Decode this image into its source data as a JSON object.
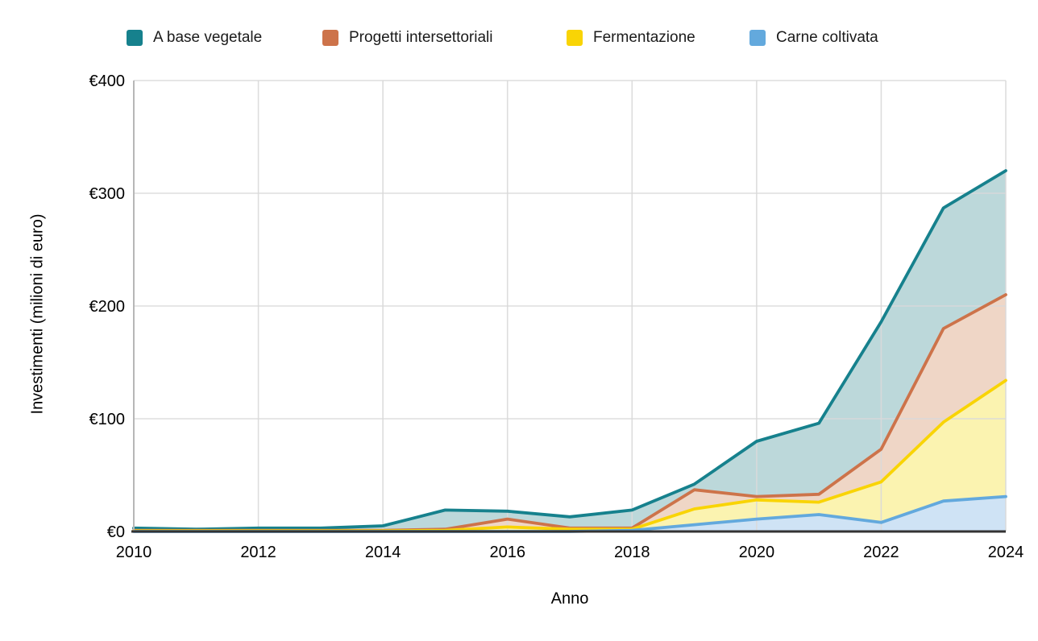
{
  "chart_data": {
    "type": "area",
    "title": "",
    "xlabel": "Anno",
    "ylabel": "Investimenti (milioni di euro)",
    "x": [
      2010,
      2011,
      2012,
      2013,
      2014,
      2015,
      2016,
      2017,
      2018,
      2019,
      2020,
      2021,
      2022,
      2023,
      2024
    ],
    "series": [
      {
        "name": "A base vegetale",
        "color": "#16818d",
        "fill": "#bcd8da",
        "values": [
          3,
          2,
          3,
          3,
          5,
          19,
          18,
          13,
          19,
          42,
          80,
          96,
          186,
          287,
          320
        ]
      },
      {
        "name": "Progetti intersettoriali",
        "color": "#cd734a",
        "fill": "#efd6c6",
        "values": [
          1,
          1,
          1,
          1,
          1,
          2,
          11,
          3,
          3,
          37,
          31,
          33,
          73,
          180,
          210
        ]
      },
      {
        "name": "Fermentazione",
        "color": "#f9d405",
        "fill": "#fbf3b0",
        "values": [
          0.5,
          0.5,
          0.5,
          0.5,
          0.5,
          1,
          4,
          2,
          2,
          20,
          28,
          26,
          44,
          97,
          134
        ]
      },
      {
        "name": "Carne coltivata",
        "color": "#63a9dd",
        "fill": "#cfe3f5",
        "values": [
          0,
          0,
          0,
          0,
          0,
          0,
          0,
          0,
          1,
          6,
          11,
          15,
          8,
          27,
          31
        ]
      }
    ],
    "xlim": [
      2010,
      2024
    ],
    "ylim": [
      0,
      400
    ],
    "x_ticks": [
      "2010",
      "2012",
      "2014",
      "2016",
      "2018",
      "2020",
      "2022",
      "2024"
    ],
    "y_ticks": [
      "€0",
      "€100",
      "€200",
      "€300",
      "€400"
    ],
    "y_tick_values": [
      0,
      100,
      200,
      300,
      400
    ],
    "x_tick_values": [
      2010,
      2012,
      2014,
      2016,
      2018,
      2020,
      2022,
      2024
    ],
    "grid": true,
    "legend_position": "top",
    "area_mode": "overlapping (not stacked)",
    "gridline_color": "#d9d9d9",
    "axis_line_color": "#b7b7b7",
    "baseline_color": "#333333",
    "tick_label_color": "#000000"
  }
}
